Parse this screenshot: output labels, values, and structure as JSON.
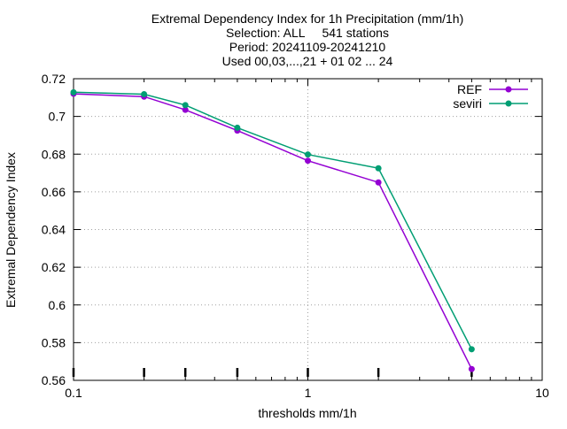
{
  "chart_data": {
    "type": "line",
    "title_lines": [
      "Extremal Dependency Index  for 1h Precipitation (mm/1h)",
      "Selection: ALL     541 stations",
      "Period: 20241109-20241210",
      "Used 00,03,...,21 + 01 02 ... 24"
    ],
    "xlabel": "thresholds mm/1h",
    "ylabel": "Extremal Dependency Index",
    "xscale": "log",
    "xlim": [
      0.1,
      10
    ],
    "ylim": [
      0.56,
      0.72
    ],
    "x_ticks": [
      "0.1",
      "1",
      "10"
    ],
    "y_ticks": [
      "0.56",
      "0.58",
      "0.6",
      "0.62",
      "0.64",
      "0.66",
      "0.68",
      "0.7",
      "0.72"
    ],
    "grid": true,
    "legend_position": "top-right",
    "x": [
      0.1,
      0.2,
      0.3,
      0.5,
      1,
      2,
      5
    ],
    "series": [
      {
        "name": "REF",
        "color": "#9400d3",
        "values": [
          0.712,
          0.7105,
          0.7035,
          0.6925,
          0.6765,
          0.665,
          0.566
        ]
      },
      {
        "name": "seviri",
        "color": "#009e73",
        "values": [
          0.7128,
          0.7118,
          0.706,
          0.694,
          0.6798,
          0.6725,
          0.5765
        ]
      }
    ]
  }
}
